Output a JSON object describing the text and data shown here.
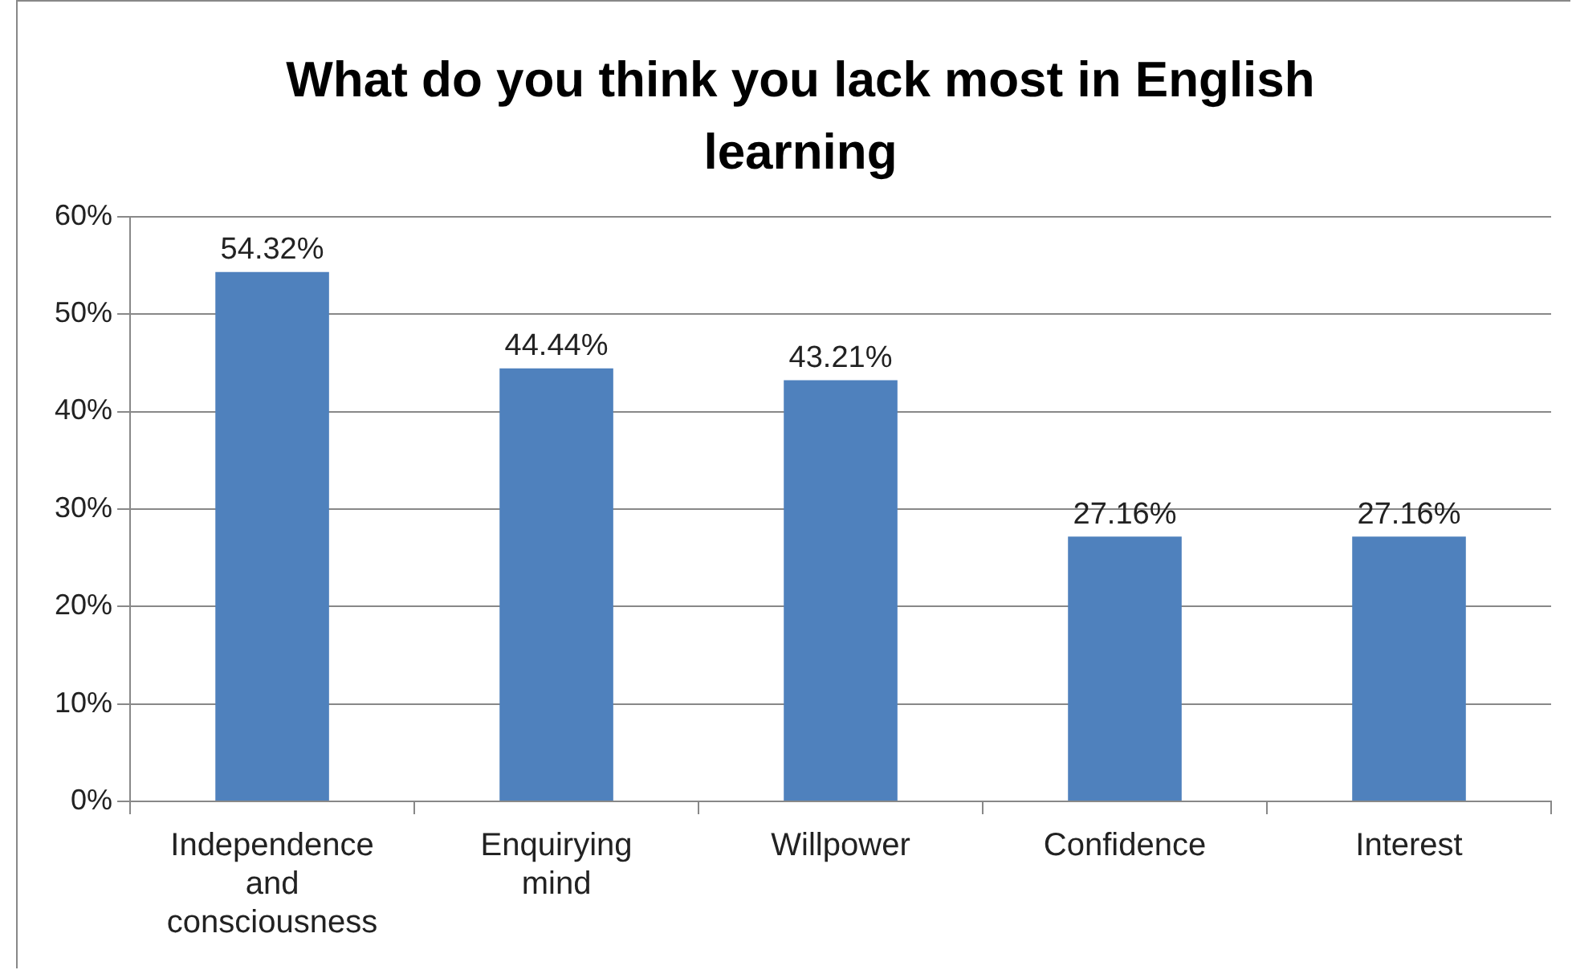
{
  "chart_data": {
    "type": "bar",
    "title": "What do you think you lack most in English learning",
    "categories": [
      "Independence and consciousness",
      "Enquirying mind",
      "Willpower",
      "Confidence",
      "Interest"
    ],
    "values": [
      54.32,
      44.44,
      43.21,
      27.16,
      27.16
    ],
    "value_labels": [
      "54.32%",
      "44.44%",
      "43.21%",
      "27.16%",
      "27.16%"
    ],
    "color": "#4f81bd",
    "ylim": [
      0,
      60
    ],
    "yticks": [
      {
        "value": 0,
        "label": "0%"
      },
      {
        "value": 10,
        "label": "10%"
      },
      {
        "value": 20,
        "label": "20%"
      },
      {
        "value": 30,
        "label": "30%"
      },
      {
        "value": 40,
        "label": "40%"
      },
      {
        "value": 50,
        "label": "50%"
      },
      {
        "value": 60,
        "label": "60%"
      }
    ],
    "grid": "y"
  }
}
